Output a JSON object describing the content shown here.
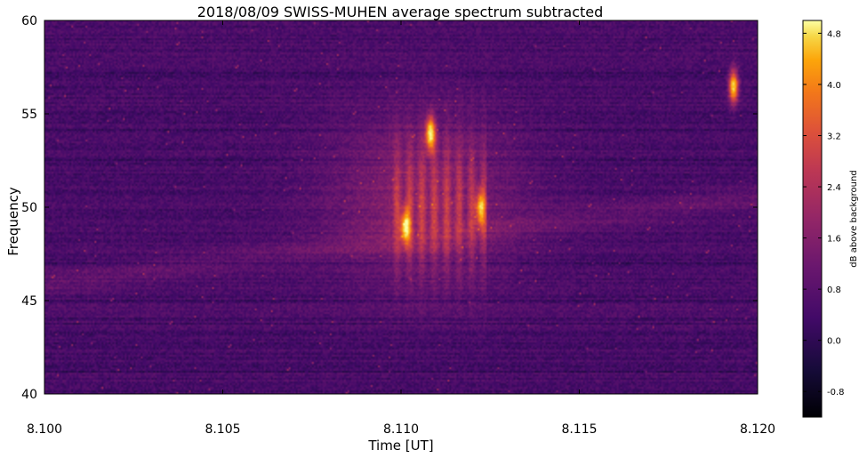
{
  "chart_data": {
    "type": "heatmap",
    "title": "2018/08/09 SWISS-MUHEN average spectrum subtracted",
    "xlabel": "Time [UT]",
    "ylabel": "Frequency",
    "xlim": [
      8.1,
      8.12
    ],
    "ylim": [
      40,
      60
    ],
    "x_ticks": [
      "8.100",
      "8.105",
      "8.110",
      "8.115",
      "8.120"
    ],
    "y_ticks": [
      "40",
      "45",
      "50",
      "55",
      "60"
    ],
    "colormap": "inferno",
    "colorbar": {
      "label": "dB above background",
      "range": [
        -1.2,
        5.0
      ],
      "ticks": [
        "-0.8",
        "0.0",
        "0.8",
        "1.6",
        "2.4",
        "3.2",
        "4.0",
        "4.8"
      ]
    },
    "features": [
      {
        "x": 8.1108,
        "y": 54.0,
        "db": 4.8
      },
      {
        "x": 8.1101,
        "y": 49.0,
        "db": 4.2
      },
      {
        "x": 8.1122,
        "y": 50.0,
        "db": 3.6
      },
      {
        "x": 8.1193,
        "y": 56.5,
        "db": 4.8
      }
    ]
  }
}
